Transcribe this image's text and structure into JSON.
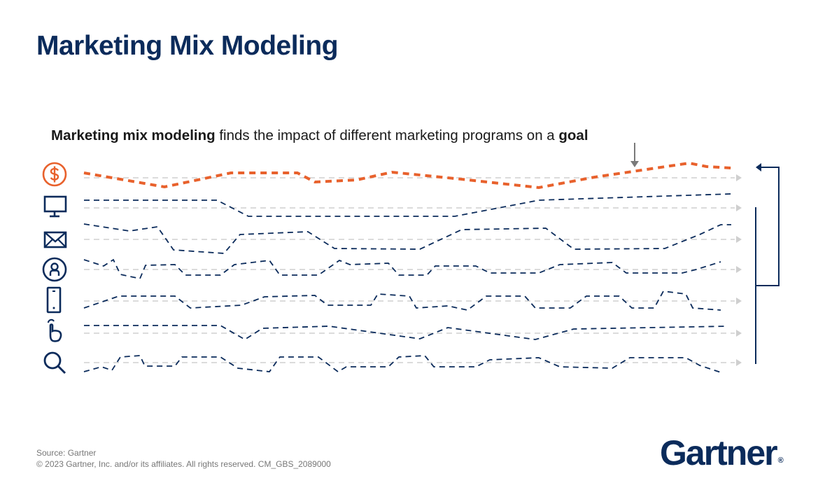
{
  "title": "Marketing Mix Modeling",
  "subtitle": {
    "bold_lead": "Marketing mix modeling",
    "text": " finds the impact of different marketing programs on a ",
    "bold_end": "goal"
  },
  "rows": [
    {
      "icon": "dollar-circle-icon",
      "role": "goal",
      "color": "#e8612c"
    },
    {
      "icon": "monitor-icon",
      "role": "program",
      "color": "#0b2b5b"
    },
    {
      "icon": "envelope-icon",
      "role": "program",
      "color": "#0b2b5b"
    },
    {
      "icon": "person-circle-icon",
      "role": "program",
      "color": "#0b2b5b"
    },
    {
      "icon": "smartphone-icon",
      "role": "program",
      "color": "#0b2b5b"
    },
    {
      "icon": "pointer-hand-icon",
      "role": "program",
      "color": "#0b2b5b"
    },
    {
      "icon": "search-icon",
      "role": "program",
      "color": "#0b2b5b"
    }
  ],
  "colors": {
    "navy": "#0b2b5b",
    "orange": "#e8612c",
    "baseline": "#cfcfcf",
    "goal_arrow": "#7a7a7a"
  },
  "footer": {
    "source": "Source: Gartner",
    "copyright": "© 2023 Gartner, Inc. and/or its affiliates. All rights reserved. CM_GBS_2089000"
  },
  "logo": {
    "text": "Gartner",
    "mark": "®"
  }
}
